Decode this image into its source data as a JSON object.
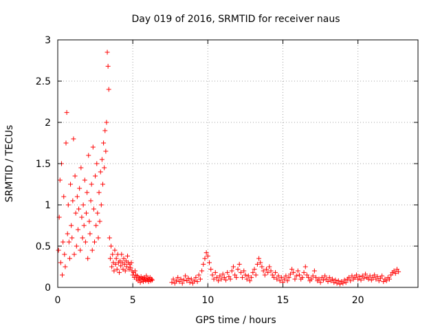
{
  "chart_data": {
    "type": "scatter",
    "title": "Day 019 of 2016, SRMTID for receiver naus",
    "xlabel": "GPS time / hours",
    "ylabel": "SRMTID / TECUs",
    "xlim": [
      0,
      24
    ],
    "ylim": [
      0,
      3
    ],
    "xticks": [
      0,
      5,
      10,
      15,
      20
    ],
    "xtick_labels": [
      "0",
      "5",
      "10",
      "15",
      "20"
    ],
    "yticks": [
      0,
      0.5,
      1,
      1.5,
      2,
      2.5,
      3
    ],
    "ytick_labels": [
      "0",
      "0.5",
      "1",
      "1.5",
      "2",
      "2.5",
      "3"
    ],
    "grid": true,
    "marker": "+",
    "color": "#ff0000",
    "series": [
      {
        "name": "SRMTID",
        "segments": [
          {
            "x": [
              0.05,
              0.1,
              0.15,
              0.2,
              0.25,
              0.3,
              0.35,
              0.4,
              0.45,
              0.5,
              0.55,
              0.6,
              0.65,
              0.7,
              0.75,
              0.8,
              0.85,
              0.9,
              0.95,
              1.0,
              1.05,
              1.1,
              1.15,
              1.2,
              1.25,
              1.3,
              1.35,
              1.4,
              1.45,
              1.5,
              1.55,
              1.6,
              1.65,
              1.7,
              1.75,
              1.8,
              1.85,
              1.9,
              1.95,
              2.0,
              2.05,
              2.1,
              2.15,
              2.2,
              2.25,
              2.3,
              2.35,
              2.4,
              2.45,
              2.5,
              2.55,
              2.6,
              2.65,
              2.7,
              2.75,
              2.8,
              2.85,
              2.9,
              2.95,
              3.0,
              3.05,
              3.1,
              3.15,
              3.2,
              3.25,
              3.3,
              3.35,
              3.4,
              3.45,
              3.5,
              3.55,
              3.6,
              3.65,
              3.7,
              3.75,
              3.8,
              3.85,
              3.9,
              3.95,
              4.0,
              4.05,
              4.1,
              4.15,
              4.2,
              4.25,
              4.3,
              4.35,
              4.4,
              4.45,
              4.5,
              4.55,
              4.6,
              4.65,
              4.7,
              4.75,
              4.8,
              4.85,
              4.9,
              4.95,
              5.0,
              5.05,
              5.1,
              5.15,
              5.2,
              5.25,
              5.3,
              5.35,
              5.4,
              5.45,
              5.5,
              5.55,
              5.6,
              5.65,
              5.7,
              5.75,
              5.8,
              5.85,
              5.9,
              5.95,
              6.0,
              6.05,
              6.1,
              6.15,
              6.2,
              6.25,
              6.3
            ],
            "y": [
              0.45,
              0.85,
              1.3,
              0.3,
              1.5,
              0.15,
              0.55,
              1.1,
              0.4,
              0.25,
              1.75,
              2.12,
              0.65,
              1.0,
              0.55,
              0.35,
              1.25,
              0.75,
              0.6,
              1.05,
              1.8,
              0.4,
              1.35,
              0.9,
              0.5,
              1.1,
              0.7,
              0.95,
              1.2,
              0.45,
              1.45,
              0.85,
              0.6,
              1.0,
              0.75,
              1.3,
              0.55,
              0.9,
              1.15,
              0.35,
              1.6,
              0.8,
              0.65,
              1.05,
              1.25,
              0.45,
              1.7,
              0.95,
              0.55,
              1.35,
              0.75,
              1.5,
              0.9,
              0.6,
              1.15,
              0.8,
              1.4,
              1.0,
              1.55,
              1.25,
              1.75,
              1.45,
              1.9,
              1.65,
              2.0,
              2.85,
              2.68,
              2.4,
              0.6,
              0.35,
              0.5,
              0.25,
              0.4,
              0.3,
              0.2,
              0.45,
              0.28,
              0.35,
              0.22,
              0.4,
              0.3,
              0.18,
              0.32,
              0.26,
              0.4,
              0.3,
              0.22,
              0.35,
              0.28,
              0.2,
              0.32,
              0.25,
              0.38,
              0.3,
              0.22,
              0.28,
              0.24,
              0.3,
              0.2,
              0.15,
              0.18,
              0.12,
              0.2,
              0.15,
              0.1,
              0.14,
              0.08,
              0.12,
              0.1,
              0.06,
              0.13,
              0.09,
              0.11,
              0.07,
              0.12,
              0.1,
              0.08,
              0.14,
              0.09,
              0.11,
              0.07,
              0.1,
              0.12,
              0.08,
              0.1,
              0.09
            ]
          },
          {
            "x": [
              7.6,
              7.7,
              7.8,
              7.9,
              8.0,
              8.1,
              8.2,
              8.3,
              8.4,
              8.5,
              8.6,
              8.7,
              8.8,
              8.9,
              9.0,
              9.1,
              9.2,
              9.3,
              9.4,
              9.5,
              9.6,
              9.7,
              9.8,
              9.9,
              10.0,
              10.1,
              10.2,
              10.3,
              10.4,
              10.5,
              10.6,
              10.7,
              10.8,
              10.9,
              11.0,
              11.1,
              11.2,
              11.3,
              11.4,
              11.5,
              11.6,
              11.7,
              11.8,
              11.9,
              12.0,
              12.1,
              12.2,
              12.3,
              12.4,
              12.5,
              12.6,
              12.7,
              12.8,
              12.9,
              13.0,
              13.1,
              13.2,
              13.3,
              13.4,
              13.5,
              13.6,
              13.7,
              13.8,
              13.9,
              14.0,
              14.1,
              14.2,
              14.3,
              14.4,
              14.5,
              14.6,
              14.7,
              14.8,
              14.9,
              15.0,
              15.1,
              15.2,
              15.3,
              15.4,
              15.5,
              15.6,
              15.7,
              15.8,
              15.9,
              16.0,
              16.1,
              16.2,
              16.3,
              16.4,
              16.5,
              16.6,
              16.7,
              16.8,
              16.9,
              17.0,
              17.1,
              17.2,
              17.3,
              17.4,
              17.5,
              17.6,
              17.7,
              17.8,
              17.9,
              18.0,
              18.1,
              18.2,
              18.3,
              18.4,
              18.5,
              18.6,
              18.7,
              18.8,
              18.9,
              19.0,
              19.1,
              19.2,
              19.3,
              19.4,
              19.5,
              19.6,
              19.7,
              19.8,
              19.9,
              20.0,
              20.1,
              20.2,
              20.3,
              20.4,
              20.5,
              20.6,
              20.7,
              20.8,
              20.9,
              21.0,
              21.1,
              21.2,
              21.3,
              21.4,
              21.5,
              21.6,
              21.7,
              21.8,
              21.9,
              22.0,
              22.1,
              22.2,
              22.3,
              22.4,
              22.5,
              22.6,
              22.7
            ],
            "y": [
              0.06,
              0.1,
              0.05,
              0.08,
              0.12,
              0.07,
              0.1,
              0.05,
              0.09,
              0.14,
              0.08,
              0.11,
              0.06,
              0.1,
              0.05,
              0.08,
              0.12,
              0.07,
              0.15,
              0.1,
              0.2,
              0.28,
              0.35,
              0.42,
              0.38,
              0.3,
              0.22,
              0.15,
              0.1,
              0.18,
              0.12,
              0.08,
              0.14,
              0.1,
              0.16,
              0.12,
              0.09,
              0.18,
              0.13,
              0.1,
              0.2,
              0.25,
              0.15,
              0.12,
              0.22,
              0.28,
              0.18,
              0.12,
              0.2,
              0.15,
              0.1,
              0.14,
              0.08,
              0.12,
              0.18,
              0.22,
              0.15,
              0.28,
              0.35,
              0.3,
              0.25,
              0.2,
              0.15,
              0.22,
              0.18,
              0.25,
              0.2,
              0.15,
              0.12,
              0.18,
              0.1,
              0.14,
              0.08,
              0.12,
              0.06,
              0.1,
              0.14,
              0.08,
              0.12,
              0.16,
              0.22,
              0.18,
              0.1,
              0.14,
              0.2,
              0.15,
              0.1,
              0.12,
              0.18,
              0.25,
              0.15,
              0.12,
              0.08,
              0.1,
              0.14,
              0.2,
              0.12,
              0.08,
              0.1,
              0.06,
              0.12,
              0.09,
              0.14,
              0.1,
              0.07,
              0.12,
              0.08,
              0.1,
              0.06,
              0.09,
              0.05,
              0.08,
              0.04,
              0.07,
              0.05,
              0.09,
              0.06,
              0.1,
              0.12,
              0.08,
              0.14,
              0.1,
              0.12,
              0.15,
              0.1,
              0.13,
              0.09,
              0.14,
              0.11,
              0.16,
              0.12,
              0.1,
              0.14,
              0.09,
              0.12,
              0.15,
              0.1,
              0.13,
              0.08,
              0.11,
              0.14,
              0.07,
              0.1,
              0.08,
              0.12,
              0.1,
              0.15,
              0.18,
              0.2,
              0.17,
              0.22,
              0.19
            ]
          }
        ]
      }
    ]
  }
}
